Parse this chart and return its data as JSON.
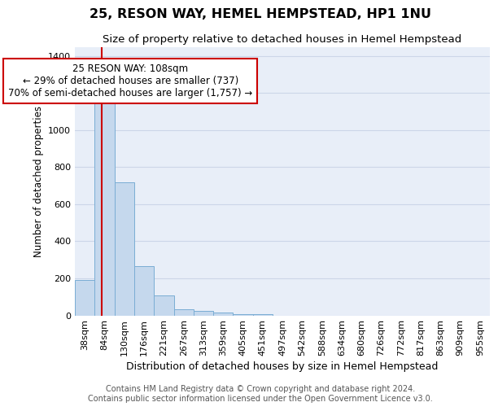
{
  "title": "25, RESON WAY, HEMEL HEMPSTEAD, HP1 1NU",
  "subtitle": "Size of property relative to detached houses in Hemel Hempstead",
  "xlabel": "Distribution of detached houses by size in Hemel Hempstead",
  "ylabel": "Number of detached properties",
  "footer_line1": "Contains HM Land Registry data © Crown copyright and database right 2024.",
  "footer_line2": "Contains public sector information licensed under the Open Government Licence v3.0.",
  "bin_labels": [
    "38sqm",
    "84sqm",
    "130sqm",
    "176sqm",
    "221sqm",
    "267sqm",
    "313sqm",
    "359sqm",
    "405sqm",
    "451sqm",
    "497sqm",
    "542sqm",
    "588sqm",
    "634sqm",
    "680sqm",
    "726sqm",
    "772sqm",
    "817sqm",
    "863sqm",
    "909sqm",
    "955sqm"
  ],
  "bar_values": [
    193,
    1148,
    718,
    265,
    107,
    32,
    24,
    16,
    7,
    6,
    0,
    0,
    0,
    0,
    0,
    0,
    0,
    0,
    0,
    0,
    0
  ],
  "bar_color": "#c5d8ed",
  "bar_edge_color": "#7aadd4",
  "grid_color": "#ccd6e8",
  "background_color": "#e8eef8",
  "vline_x": 1.35,
  "vline_color": "#cc0000",
  "annotation_text": "25 RESON WAY: 108sqm\n← 29% of detached houses are smaller (737)\n70% of semi-detached houses are larger (1,757) →",
  "annotation_box_facecolor": "#ffffff",
  "annotation_box_edgecolor": "#cc0000",
  "ylim": [
    0,
    1450
  ],
  "yticks": [
    0,
    200,
    400,
    600,
    800,
    1000,
    1200,
    1400
  ],
  "title_fontsize": 11.5,
  "subtitle_fontsize": 9.5,
  "xlabel_fontsize": 9,
  "ylabel_fontsize": 8.5,
  "tick_fontsize": 8,
  "footer_fontsize": 7,
  "annotation_fontsize": 8.5
}
